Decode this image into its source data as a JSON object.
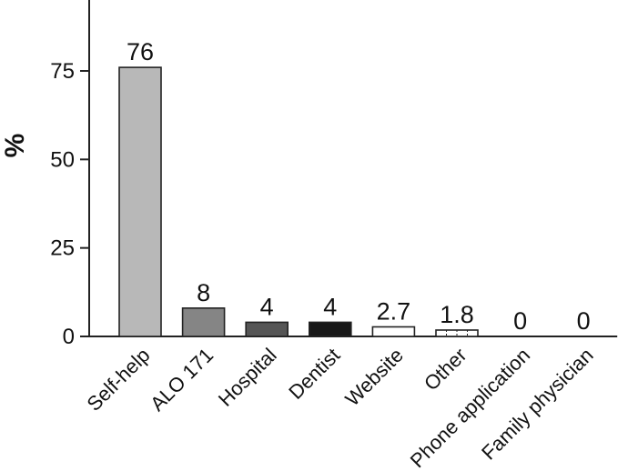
{
  "chart_data": {
    "type": "bar",
    "ylabel": "%",
    "ylim": [
      0,
      100
    ],
    "yticks": [
      0,
      25,
      50,
      75
    ],
    "categories": [
      "Self-help",
      "ALO 171",
      "Hospital",
      "Dentist",
      "Website",
      "Other",
      "Phone application",
      "Family physician"
    ],
    "values": [
      76,
      8,
      4,
      4,
      2.7,
      1.8,
      0,
      0
    ],
    "value_labels": [
      "76",
      "8",
      "4",
      "4",
      "2.7",
      "1.8",
      "0",
      "0"
    ],
    "bar_colors": [
      "#b8b8b8",
      "#858585",
      "#555555",
      "#181818",
      "#ffffff",
      "#ffffff",
      "#ffffff",
      "#ffffff"
    ],
    "bar_patterns": [
      "solid",
      "solid",
      "solid",
      "solid",
      "solid",
      "dashed-vertical",
      "solid",
      "solid"
    ],
    "grid": false,
    "legend": "none"
  }
}
